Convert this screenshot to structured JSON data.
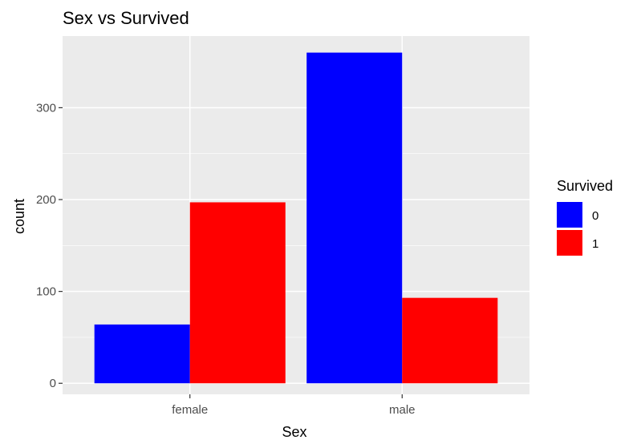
{
  "chart_data": {
    "type": "bar",
    "title": "Sex vs Survived",
    "xlabel": "Sex",
    "ylabel": "count",
    "categories": [
      "female",
      "male"
    ],
    "series": [
      {
        "name": "0",
        "values": [
          64,
          360
        ]
      },
      {
        "name": "1",
        "values": [
          197,
          93
        ]
      }
    ],
    "ylim": [
      -12,
      378
    ],
    "yticks": [
      0,
      100,
      200,
      300
    ],
    "legend": {
      "title": "Survived",
      "position": "right"
    },
    "colors": {
      "0": "#0000ff",
      "1": "#ff0000",
      "panel": "#ebebeb",
      "grid": "#ffffff"
    },
    "grid": true
  }
}
